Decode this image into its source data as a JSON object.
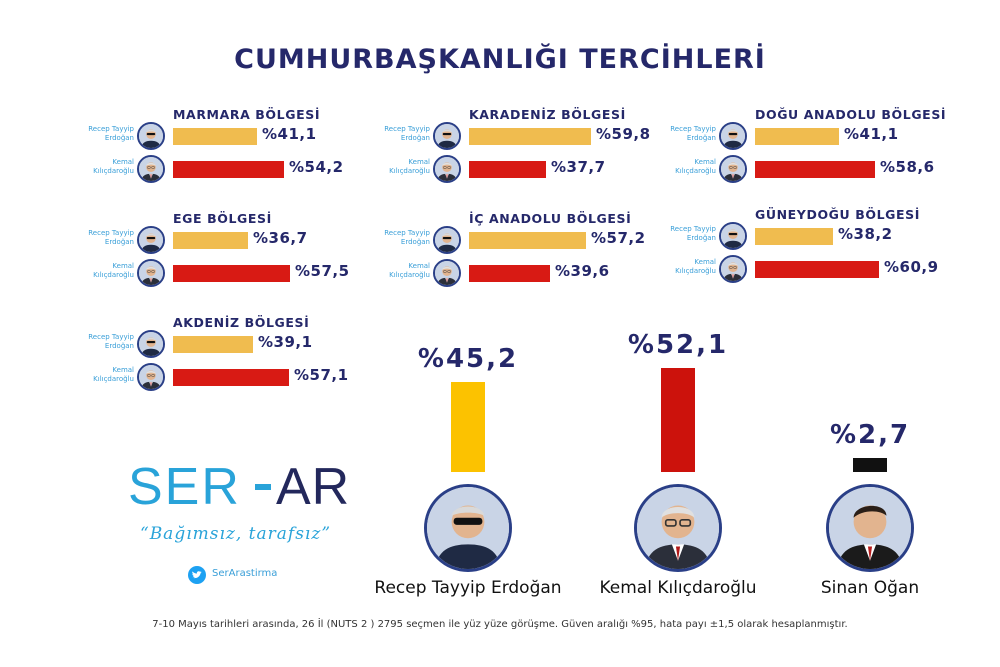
{
  "title": "CUMHURBAŞKANLIĞI TERCİHLERİ",
  "candidates": {
    "erdogan": {
      "name_short": "Recep Tayyip Erdoğan",
      "name_full": "Recep Tayyip Erdoğan"
    },
    "kilicdaroglu": {
      "name_short": "Kemal Kılıçdaroğlu",
      "name_full": "Kemal Kılıçdaroğlu"
    },
    "ogan": {
      "name_full": "Sinan Oğan"
    }
  },
  "colors": {
    "erdogan": "#f0bc4f",
    "kilicdaroglu": "#d81a14",
    "ogan": "#111111",
    "erdogan_main": "#fcc200",
    "kilicdaroglu_main": "#cc120c",
    "title": "#25286a",
    "accent": "#29a3d9"
  },
  "chart_data": [
    {
      "type": "bar",
      "orientation": "horizontal",
      "regions": [
        {
          "name": "MARMARA BÖLGESİ",
          "values": [
            41.1,
            54.2
          ],
          "labels": [
            "%41,1",
            "%54,2"
          ]
        },
        {
          "name": "KARADENİZ BÖLGESİ",
          "values": [
            59.8,
            37.7
          ],
          "labels": [
            "%59,8",
            "%37,7"
          ]
        },
        {
          "name": "DOĞU ANADOLU BÖLGESİ",
          "values": [
            41.1,
            58.6
          ],
          "labels": [
            "%41,1",
            "%58,6"
          ]
        },
        {
          "name": "EGE BÖLGESİ",
          "values": [
            36.7,
            57.5
          ],
          "labels": [
            "%36,7",
            "%57,5"
          ]
        },
        {
          "name": "İÇ ANADOLU BÖLGESİ",
          "values": [
            57.2,
            39.6
          ],
          "labels": [
            "%57,2",
            "%39,6"
          ]
        },
        {
          "name": "GÜNEYDOĞU BÖLGESİ",
          "values": [
            38.2,
            60.9
          ],
          "labels": [
            "%38,2",
            "%60,9"
          ]
        },
        {
          "name": "AKDENİZ BÖLGESİ",
          "values": [
            39.1,
            57.1
          ],
          "labels": [
            "%39,1",
            "%57,1"
          ]
        }
      ],
      "series_names": [
        "Recep Tayyip Erdoğan",
        "Kemal Kılıçdaroğlu"
      ]
    },
    {
      "type": "bar",
      "orientation": "vertical",
      "categories": [
        "Recep Tayyip Erdoğan",
        "Kemal Kılıçdaroğlu",
        "Sinan Oğan"
      ],
      "values": [
        45.2,
        52.1,
        2.7
      ],
      "labels": [
        "%45,2",
        "%52,1",
        "%2,7"
      ]
    }
  ],
  "brand": {
    "logo_text": "SER-AR",
    "slogan": "“Bağımsız, tarafsız”",
    "twitter_handle": "SerArastirma"
  },
  "footnote": "7-10 Mayıs tarihleri arasında, 26 İl (NUTS 2 ) 2795 seçmen ile yüz yüze görüşme. Güven aralığı %95, hata payı ±1,5 olarak hesaplanmıştır."
}
